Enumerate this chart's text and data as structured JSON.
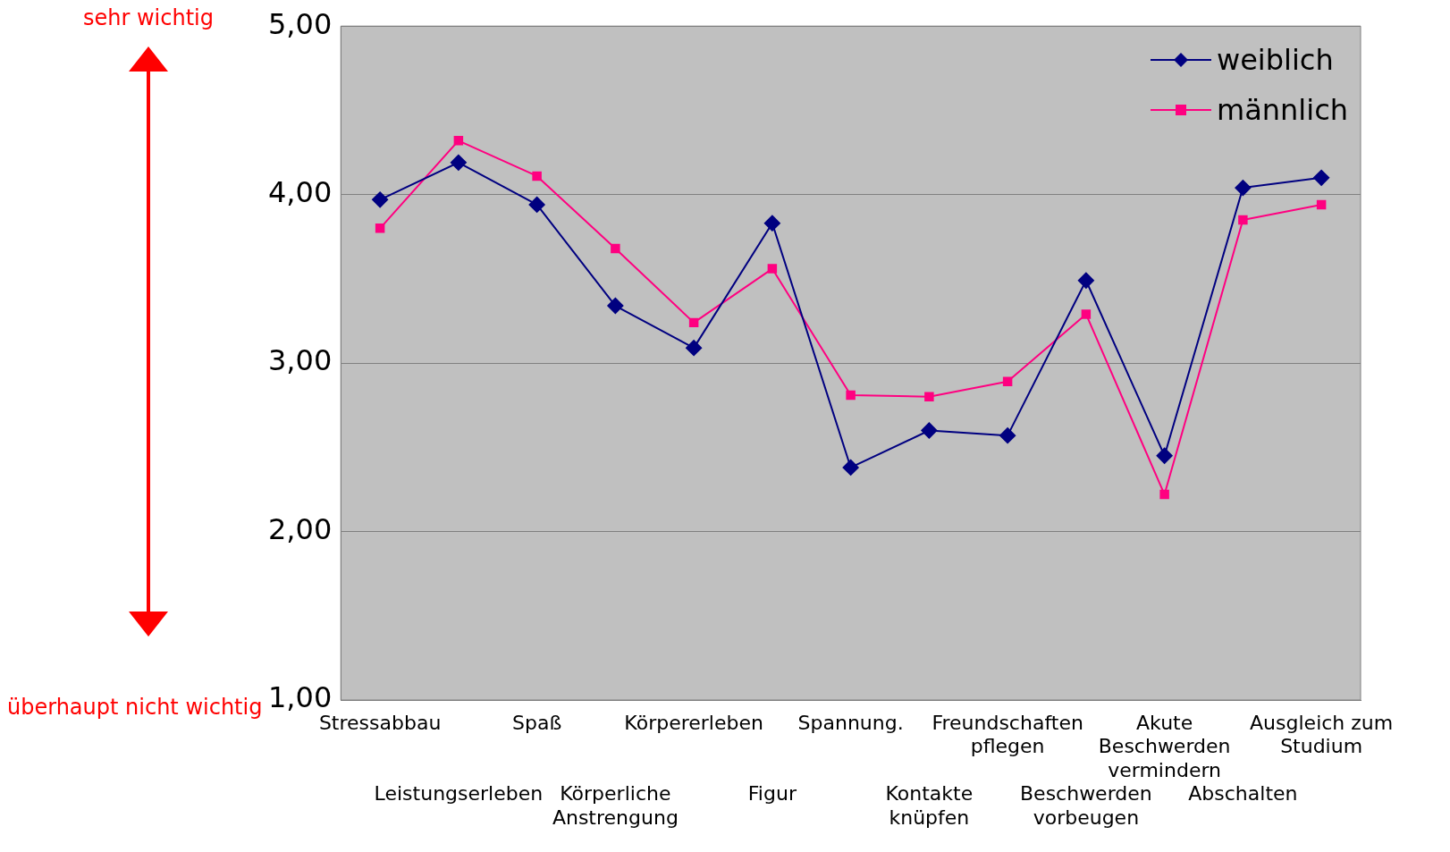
{
  "chart_data": {
    "type": "line",
    "categories": [
      "Stressabbau",
      "Leistungserleben",
      "Spaß",
      "Körperliche Anstrengung",
      "Körpererleben",
      "Figur",
      "Spannung.",
      "Kontakte knüpfen",
      "Freundschaften pflegen",
      "Beschwerden vorbeugen",
      "Akute Beschwerden vermindern",
      "Abschalten",
      "Ausgleich zum Studium"
    ],
    "series": [
      {
        "name": "weiblich",
        "color": "#000080",
        "marker": "diamond",
        "values": [
          3.97,
          4.19,
          3.94,
          3.34,
          3.09,
          3.83,
          2.38,
          2.6,
          2.57,
          3.49,
          2.45,
          4.04,
          4.1
        ]
      },
      {
        "name": "männlich",
        "color": "#ff0080",
        "marker": "square",
        "values": [
          3.8,
          4.32,
          4.11,
          3.68,
          3.24,
          3.56,
          2.81,
          2.8,
          2.89,
          3.29,
          2.22,
          3.85,
          3.94
        ]
      }
    ],
    "ylim": [
      1,
      5
    ],
    "yticks": [
      {
        "value": 1,
        "label": "1,00"
      },
      {
        "value": 2,
        "label": "2,00"
      },
      {
        "value": 3,
        "label": "3,00"
      },
      {
        "value": 4,
        "label": "4,00"
      },
      {
        "value": 5,
        "label": "5,00"
      }
    ],
    "grid": "y",
    "legend": "top right",
    "line_style": "solid",
    "annotations": [
      "sehr wichtig",
      "überhaupt nicht wichtig"
    ]
  }
}
